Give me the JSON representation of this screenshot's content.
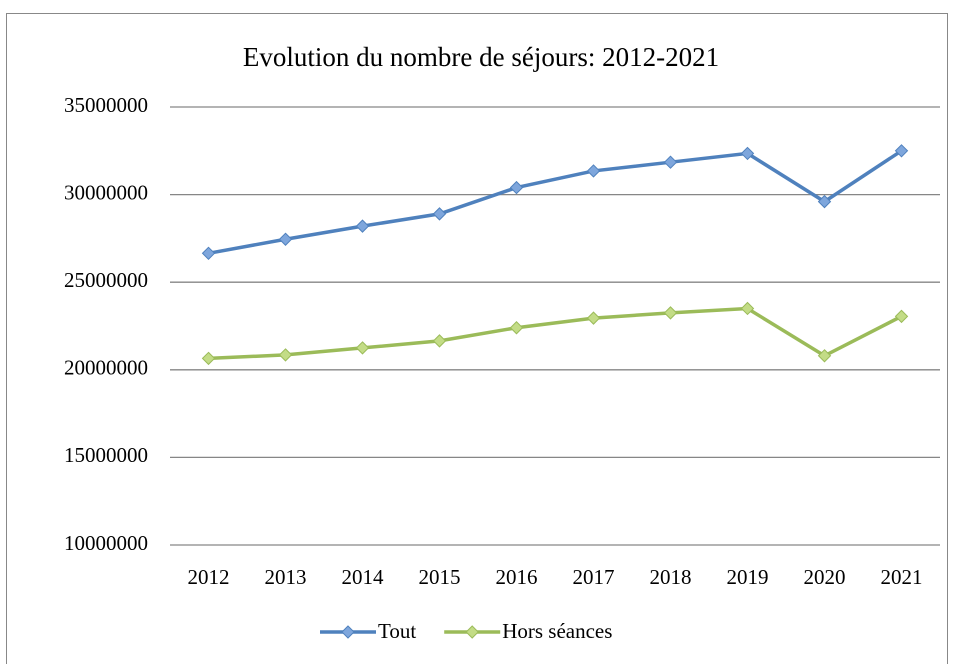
{
  "chart_data": {
    "type": "line",
    "title": "Evolution du nombre de séjours: 2012-2021",
    "categories": [
      "2012",
      "2013",
      "2014",
      "2015",
      "2016",
      "2017",
      "2018",
      "2019",
      "2020",
      "2021"
    ],
    "series": [
      {
        "name": "Tout",
        "color": "#4f81bd",
        "marker_color": "#7ea6dc",
        "values": [
          26650000,
          27450000,
          28200000,
          28900000,
          30400000,
          31350000,
          31850000,
          32350000,
          29600000,
          32500000
        ]
      },
      {
        "name": "Hors séances",
        "color": "#9bbb59",
        "marker_color": "#c3dc86",
        "values": [
          20650000,
          20850000,
          21250000,
          21650000,
          22400000,
          22950000,
          23250000,
          23500000,
          20800000,
          23050000
        ]
      }
    ],
    "ylim": [
      10000000,
      35000000
    ],
    "yticks": [
      10000000,
      15000000,
      20000000,
      25000000,
      30000000,
      35000000
    ],
    "grid": true,
    "legend": "bottom"
  }
}
